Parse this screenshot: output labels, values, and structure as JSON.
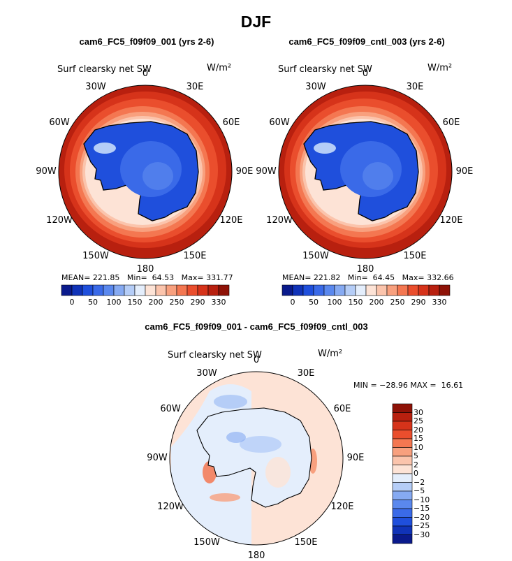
{
  "season": "DJF",
  "chart_data": [
    {
      "type": "heatmap",
      "projection": "south-polar-stereographic",
      "title": "cam6_FC5_f09f09_001 (yrs 2-6)",
      "variable": "Surf clearsky net SW",
      "units": "W/m²",
      "longitude_labels": [
        "0",
        "30E",
        "60E",
        "90E",
        "120E",
        "150E",
        "180",
        "150W",
        "120W",
        "90W",
        "60W",
        "30W"
      ],
      "stats": {
        "mean_label": "MEAN=",
        "mean": "221.85",
        "min_label": "Min=",
        "min": "64.53",
        "max_label": "Max=",
        "max": "331.77"
      },
      "colorbar": {
        "ticks": [
          "0",
          "50",
          "100",
          "150",
          "200",
          "250",
          "290",
          "330"
        ],
        "colors": [
          "#0a1a8c",
          "#1033b8",
          "#1f4fdc",
          "#3a6ae8",
          "#5a88ee",
          "#86aaf2",
          "#b5cdf7",
          "#e4eefc",
          "#fde3d6",
          "#fbc4ac",
          "#f8a07e",
          "#f47751",
          "#ea4e2d",
          "#d6331a",
          "#b8200f",
          "#8e1207"
        ]
      }
    },
    {
      "type": "heatmap",
      "projection": "south-polar-stereographic",
      "title": "cam6_FC5_f09f09_cntl_003 (yrs 2-6)",
      "variable": "Surf clearsky net SW",
      "units": "W/m²",
      "longitude_labels": [
        "0",
        "30E",
        "60E",
        "90E",
        "120E",
        "150E",
        "180",
        "150W",
        "120W",
        "90W",
        "60W",
        "30W"
      ],
      "stats": {
        "mean_label": "MEAN=",
        "mean": "221.82",
        "min_label": "Min=",
        "min": "64.45",
        "max_label": "Max=",
        "max": "332.66"
      },
      "colorbar": {
        "ticks": [
          "0",
          "50",
          "100",
          "150",
          "200",
          "250",
          "290",
          "330"
        ],
        "colors": [
          "#0a1a8c",
          "#1033b8",
          "#1f4fdc",
          "#3a6ae8",
          "#5a88ee",
          "#86aaf2",
          "#b5cdf7",
          "#e4eefc",
          "#fde3d6",
          "#fbc4ac",
          "#f8a07e",
          "#f47751",
          "#ea4e2d",
          "#d6331a",
          "#b8200f",
          "#8e1207"
        ]
      }
    },
    {
      "type": "heatmap",
      "projection": "south-polar-stereographic",
      "title": "cam6_FC5_f09f09_001 - cam6_FC5_f09f09_cntl_003",
      "variable": "Surf clearsky net SW",
      "units": "W/m²",
      "longitude_labels": [
        "0",
        "30E",
        "60E",
        "90E",
        "120E",
        "150E",
        "180",
        "150W",
        "120W",
        "90W",
        "60W",
        "30W"
      ],
      "stats_text": "MIN = −28.96 MAX =  16.61",
      "min": -28.96,
      "max": 16.61,
      "colorbar": {
        "ticks": [
          "30",
          "25",
          "20",
          "15",
          "10",
          "5",
          "2",
          "0",
          "−2",
          "−5",
          "−10",
          "−15",
          "−20",
          "−25",
          "−30"
        ],
        "colors": [
          "#8e1207",
          "#b8200f",
          "#d6331a",
          "#ea4e2d",
          "#f47751",
          "#f8a07e",
          "#fbc4ac",
          "#fde3d6",
          "#e4eefc",
          "#b5cdf7",
          "#86aaf2",
          "#5a88ee",
          "#3a6ae8",
          "#1f4fdc",
          "#1033b8",
          "#0a1a8c"
        ]
      }
    }
  ]
}
